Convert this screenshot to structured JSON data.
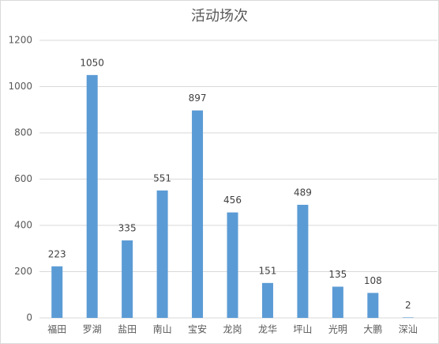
{
  "chart_data": {
    "type": "bar",
    "title": "活动场次",
    "categories": [
      "福田",
      "罗湖",
      "盐田",
      "南山",
      "宝安",
      "龙岗",
      "龙华",
      "坪山",
      "光明",
      "大鹏",
      "深汕"
    ],
    "values": [
      223,
      1050,
      335,
      551,
      897,
      456,
      151,
      489,
      135,
      108,
      2
    ],
    "color": "#5b9bd5",
    "ylim": [
      0,
      1200
    ],
    "yticks": [
      0,
      200,
      400,
      600,
      800,
      1000,
      1200
    ],
    "grid": true
  }
}
